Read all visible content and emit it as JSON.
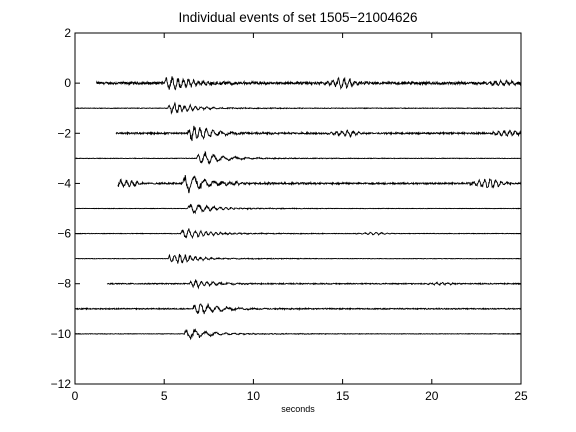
{
  "chart_data": {
    "type": "line",
    "title": "Individual events of set 1505−21004626",
    "xlabel": "seconds",
    "ylabel": "",
    "xlim": [
      0,
      25
    ],
    "ylim": [
      -12,
      2
    ],
    "xticks": [
      0,
      5,
      10,
      15,
      20,
      25
    ],
    "yticks": [
      2,
      0,
      -2,
      -4,
      -6,
      -8,
      -10,
      -12
    ],
    "xtick_labels": [
      "0",
      "5",
      "10",
      "15",
      "20",
      "25"
    ],
    "ytick_labels": [
      "2",
      "0",
      "−2",
      "−4",
      "−6",
      "−8",
      "−10",
      "−12"
    ],
    "grid": false,
    "line_color": "#000000",
    "series": [
      {
        "offset": 0,
        "start": 1.2,
        "onset": 5.0,
        "amp": 0.42,
        "noise": 0.05,
        "late": [
          {
            "t": 15.0,
            "a": 0.18
          },
          {
            "t": 23.8,
            "a": 0.08
          }
        ]
      },
      {
        "offset": -1,
        "start": 0.0,
        "onset": 5.2,
        "amp": 0.32,
        "noise": 0.012,
        "late": []
      },
      {
        "offset": -2,
        "start": 2.3,
        "onset": 6.3,
        "amp": 0.45,
        "noise": 0.03,
        "late": [
          {
            "t": 15.2,
            "a": 0.09
          },
          {
            "t": 24.3,
            "a": 0.1
          }
        ]
      },
      {
        "offset": -3,
        "start": 0.0,
        "onset": 6.8,
        "amp": 0.38,
        "noise": 0.01,
        "late": []
      },
      {
        "offset": -4,
        "start": 2.4,
        "onset": 6.0,
        "amp": 0.55,
        "noise": 0.03,
        "late": [
          {
            "t": 2.8,
            "a": 0.12
          },
          {
            "t": 23.2,
            "a": 0.16
          }
        ]
      },
      {
        "offset": -5,
        "start": 0.0,
        "onset": 6.3,
        "amp": 0.3,
        "noise": 0.008,
        "late": []
      },
      {
        "offset": -6,
        "start": 0.0,
        "onset": 5.9,
        "amp": 0.3,
        "noise": 0.01,
        "late": [
          {
            "t": 16.8,
            "a": 0.04
          }
        ]
      },
      {
        "offset": -7,
        "start": 0.0,
        "onset": 5.2,
        "amp": 0.32,
        "noise": 0.008,
        "late": []
      },
      {
        "offset": -8,
        "start": 1.8,
        "onset": 6.4,
        "amp": 0.22,
        "noise": 0.02,
        "late": [
          {
            "t": 20.5,
            "a": 0.04
          }
        ]
      },
      {
        "offset": -9,
        "start": 0.0,
        "onset": 6.6,
        "amp": 0.35,
        "noise": 0.02,
        "late": []
      },
      {
        "offset": -10,
        "start": 0.0,
        "onset": 6.1,
        "amp": 0.3,
        "noise": 0.01,
        "late": []
      }
    ]
  }
}
